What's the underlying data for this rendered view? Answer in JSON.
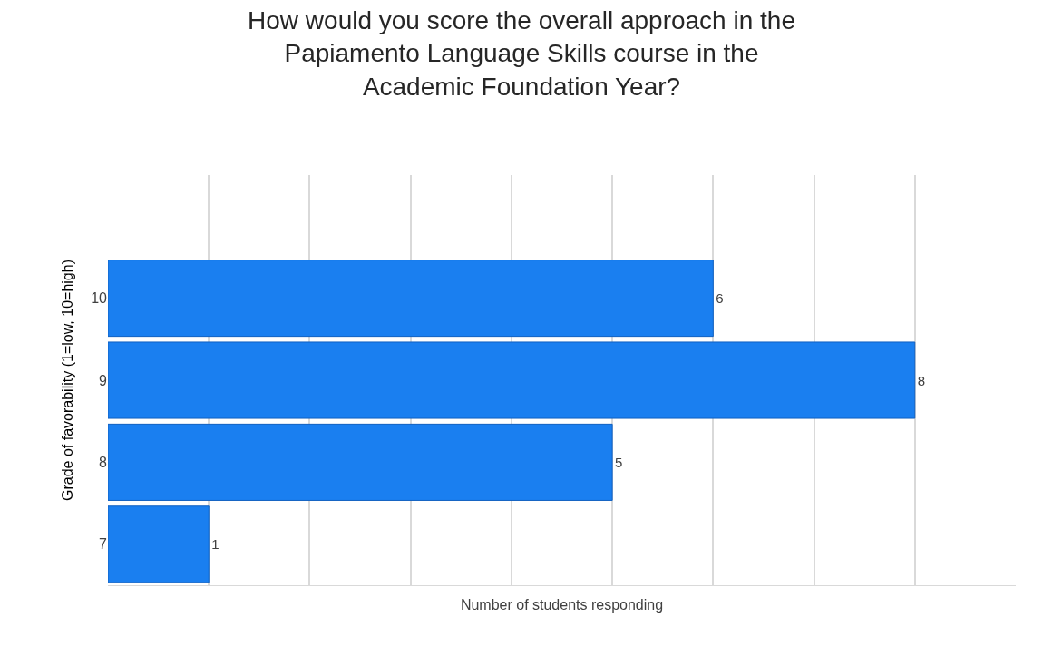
{
  "chart_data": {
    "type": "bar",
    "orientation": "horizontal",
    "title": "How would you score the overall approach in the Papiamento Language Skills course in the Academic Foundation Year?",
    "xlabel": "Number of students responding",
    "ylabel": "Grade of favorability (1=low, 10=high)",
    "categories": [
      null,
      "10",
      "9",
      "8",
      "7"
    ],
    "values": [
      null,
      6,
      8,
      5,
      1
    ],
    "color": "#1a7ff0",
    "xlim": [
      0,
      9
    ],
    "xticks": [
      {
        "value": 1,
        "label": null
      },
      {
        "value": 2,
        "label": null
      },
      {
        "value": 3,
        "label": null
      },
      {
        "value": 4,
        "label": null
      },
      {
        "value": 5,
        "label": null
      },
      {
        "value": 6,
        "label": null
      },
      {
        "value": 7,
        "label": null
      },
      {
        "value": 8,
        "label": null
      }
    ],
    "tick_labels": "y",
    "grid": "x",
    "data_labels": true
  }
}
